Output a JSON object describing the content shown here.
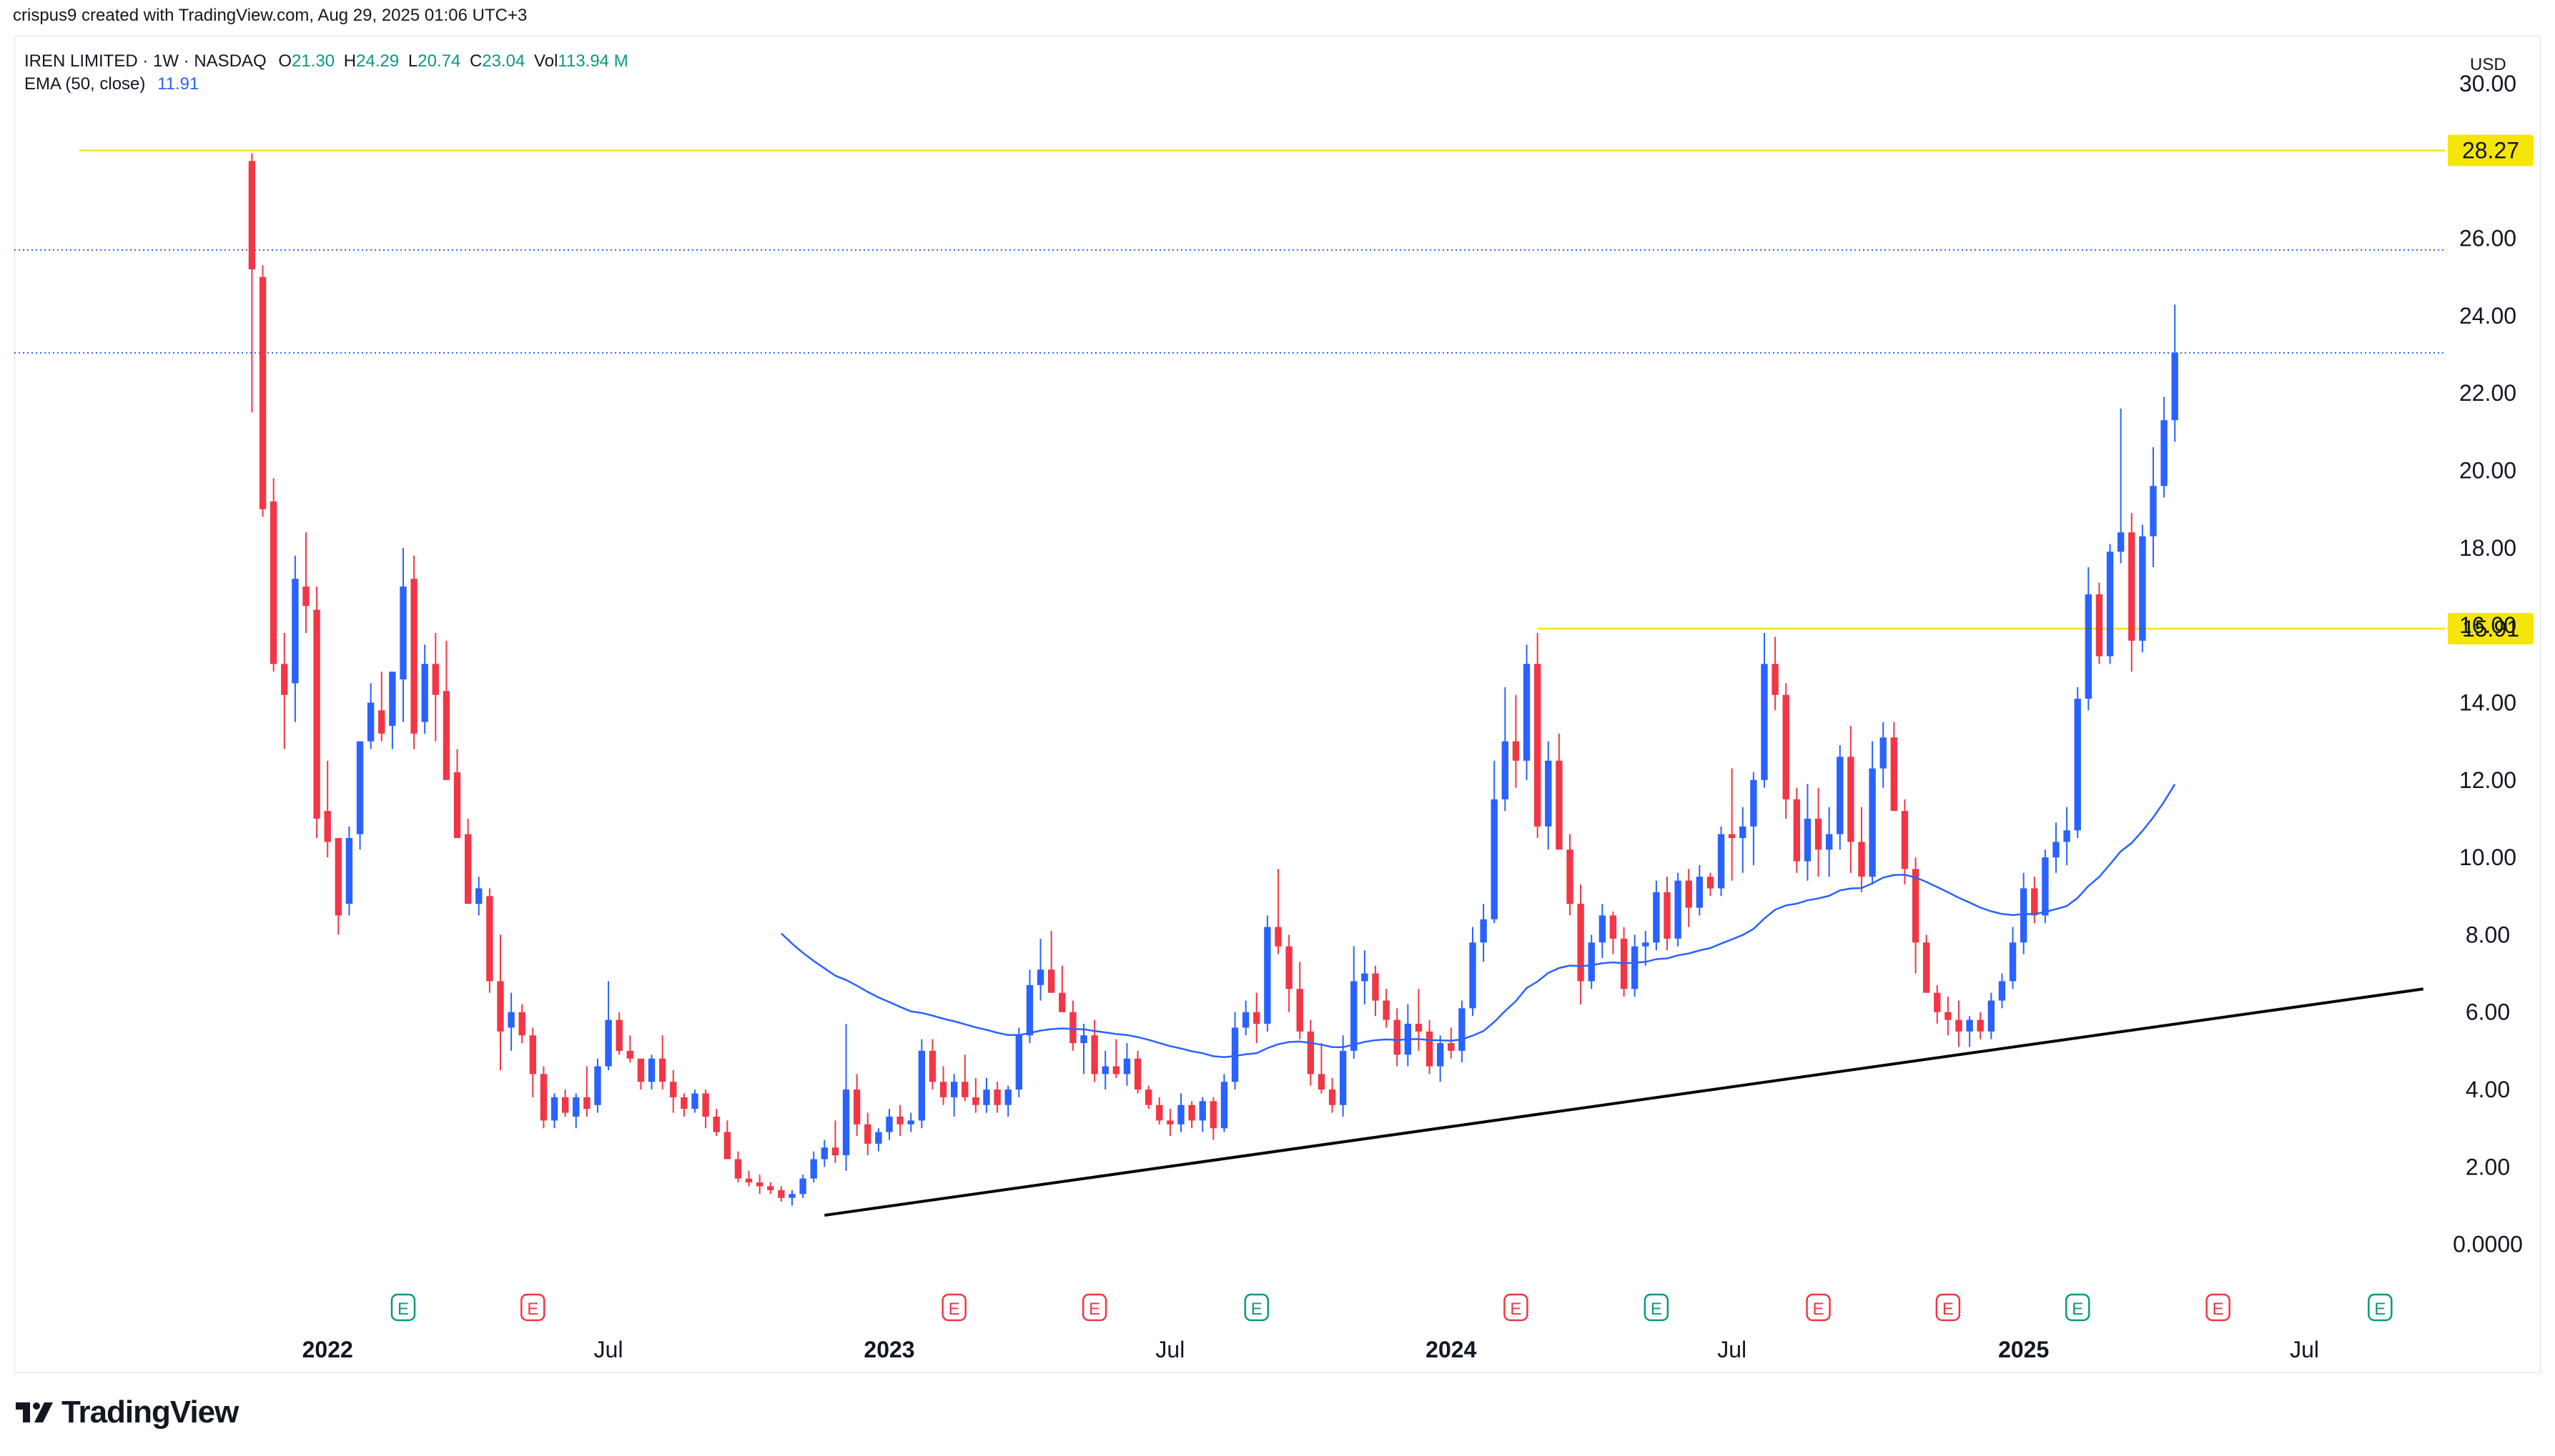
{
  "header": {
    "author_line": "crispus9 created with TradingView.com, Aug 29, 2025 01:06 UTC+3"
  },
  "legend": {
    "symbol": "IREN LIMITED · 1W · NASDAQ",
    "open_label": "O",
    "open": "21.30",
    "high_label": "H",
    "high": "24.29",
    "low_label": "L",
    "low": "20.74",
    "close_label": "C",
    "close": "23.04",
    "vol_label": "Vol",
    "vol": "113.94 M",
    "ema_label": "EMA (50, close)",
    "ema_value": "11.91"
  },
  "footer": {
    "brand": "TradingView",
    "logo": "tradingview-logo-icon"
  },
  "colors": {
    "up": "#2962ff",
    "down": "#f23645",
    "ema": "#2962ff",
    "level": "#f5e60a",
    "trendline": "#000000",
    "dotted": "#2962ff",
    "earnings_green": "#089981",
    "earnings_red": "#f23645"
  },
  "chart_data": {
    "type": "candlestick",
    "currency": "USD",
    "y_ticks": [
      "30.00",
      "26.00",
      "24.00",
      "22.00",
      "20.00",
      "18.00",
      "16.00",
      "14.00",
      "12.00",
      "10.00",
      "8.00",
      "6.00",
      "4.00",
      "2.00",
      "0.0000"
    ],
    "ylim": [
      -0.8,
      31.2
    ],
    "x_labels": [
      {
        "label": "2022",
        "date": "2022-01-03",
        "bold": true
      },
      {
        "label": "Jul",
        "date": "2022-07-04",
        "bold": false
      },
      {
        "label": "2023",
        "date": "2023-01-02",
        "bold": true
      },
      {
        "label": "Jul",
        "date": "2023-07-03",
        "bold": false
      },
      {
        "label": "2024",
        "date": "2024-01-01",
        "bold": true
      },
      {
        "label": "Jul",
        "date": "2024-07-01",
        "bold": false
      },
      {
        "label": "2025",
        "date": "2025-01-06",
        "bold": true
      },
      {
        "label": "Jul",
        "date": "2025-07-07",
        "bold": false
      }
    ],
    "xlim": [
      "2021-06-14",
      "2025-10-06"
    ],
    "first_candle_date": "2021-11-15",
    "candles": [
      [
        28.0,
        28.2,
        21.5,
        25.2
      ],
      [
        25.0,
        25.3,
        18.8,
        19.0
      ],
      [
        19.2,
        19.8,
        14.8,
        15.0
      ],
      [
        15.0,
        15.8,
        12.8,
        14.2
      ],
      [
        14.5,
        17.8,
        13.5,
        17.2
      ],
      [
        17.0,
        18.4,
        15.8,
        16.5
      ],
      [
        16.4,
        17.0,
        10.5,
        11.0
      ],
      [
        11.2,
        12.5,
        10.0,
        10.4
      ],
      [
        10.5,
        10.5,
        8.0,
        8.5
      ],
      [
        8.8,
        10.8,
        8.5,
        10.5
      ],
      [
        10.6,
        13.0,
        10.2,
        13.0
      ],
      [
        13.0,
        14.5,
        12.8,
        14.0
      ],
      [
        13.8,
        14.8,
        13.0,
        13.2
      ],
      [
        13.4,
        14.8,
        12.8,
        14.8
      ],
      [
        14.6,
        18.0,
        13.5,
        17.0
      ],
      [
        17.2,
        17.8,
        12.8,
        13.2
      ],
      [
        13.5,
        15.5,
        13.2,
        15.0
      ],
      [
        15.0,
        15.8,
        13.0,
        14.2
      ],
      [
        14.3,
        15.6,
        12.0,
        12.0
      ],
      [
        12.2,
        12.8,
        10.5,
        10.5
      ],
      [
        10.6,
        11.0,
        8.8,
        8.8
      ],
      [
        8.8,
        9.5,
        8.5,
        9.2
      ],
      [
        9.0,
        9.2,
        6.5,
        6.8
      ],
      [
        6.8,
        8.0,
        4.5,
        5.5
      ],
      [
        5.6,
        6.5,
        5.0,
        6.0
      ],
      [
        6.0,
        6.2,
        5.2,
        5.4
      ],
      [
        5.4,
        5.6,
        3.8,
        4.4
      ],
      [
        4.4,
        4.6,
        3.0,
        3.2
      ],
      [
        3.2,
        3.9,
        3.0,
        3.8
      ],
      [
        3.8,
        4.0,
        3.3,
        3.4
      ],
      [
        3.3,
        3.9,
        3.0,
        3.8
      ],
      [
        3.8,
        4.6,
        3.3,
        3.5
      ],
      [
        3.6,
        4.8,
        3.4,
        4.6
      ],
      [
        4.6,
        6.8,
        4.5,
        5.8
      ],
      [
        5.8,
        6.0,
        4.9,
        5.0
      ],
      [
        5.0,
        5.4,
        4.7,
        4.8
      ],
      [
        4.8,
        4.8,
        4.0,
        4.2
      ],
      [
        4.2,
        4.9,
        4.0,
        4.8
      ],
      [
        4.8,
        5.4,
        4.0,
        4.2
      ],
      [
        4.2,
        4.5,
        3.4,
        3.8
      ],
      [
        3.8,
        3.9,
        3.3,
        3.5
      ],
      [
        3.5,
        4.0,
        3.4,
        3.9
      ],
      [
        3.9,
        4.0,
        3.0,
        3.3
      ],
      [
        3.3,
        3.5,
        2.8,
        2.9
      ],
      [
        2.9,
        3.2,
        2.2,
        2.2
      ],
      [
        2.2,
        2.4,
        1.6,
        1.7
      ],
      [
        1.7,
        1.9,
        1.5,
        1.6
      ],
      [
        1.6,
        1.8,
        1.3,
        1.5
      ],
      [
        1.5,
        1.6,
        1.3,
        1.4
      ],
      [
        1.4,
        1.5,
        1.1,
        1.2
      ],
      [
        1.2,
        1.4,
        1.0,
        1.3
      ],
      [
        1.3,
        1.8,
        1.2,
        1.7
      ],
      [
        1.7,
        2.4,
        1.6,
        2.2
      ],
      [
        2.2,
        2.7,
        2.0,
        2.5
      ],
      [
        2.5,
        3.2,
        2.1,
        2.3
      ],
      [
        2.3,
        5.7,
        1.9,
        4.0
      ],
      [
        4.0,
        4.4,
        2.8,
        3.1
      ],
      [
        3.1,
        3.4,
        2.3,
        2.6
      ],
      [
        2.6,
        3.0,
        2.4,
        2.9
      ],
      [
        2.9,
        3.5,
        2.7,
        3.3
      ],
      [
        3.3,
        3.6,
        2.8,
        3.1
      ],
      [
        3.1,
        3.4,
        2.9,
        3.2
      ],
      [
        3.2,
        5.3,
        3.0,
        5.0
      ],
      [
        5.0,
        5.3,
        4.0,
        4.2
      ],
      [
        4.2,
        4.6,
        3.6,
        3.8
      ],
      [
        3.8,
        4.4,
        3.3,
        4.2
      ],
      [
        4.2,
        4.9,
        3.7,
        3.8
      ],
      [
        3.8,
        4.3,
        3.4,
        3.6
      ],
      [
        3.6,
        4.3,
        3.4,
        4.0
      ],
      [
        4.0,
        4.2,
        3.4,
        3.6
      ],
      [
        3.6,
        4.1,
        3.3,
        4.0
      ],
      [
        4.0,
        5.6,
        3.8,
        5.4
      ],
      [
        5.4,
        7.1,
        5.2,
        6.7
      ],
      [
        6.7,
        7.9,
        6.3,
        7.1
      ],
      [
        7.1,
        8.1,
        6.6,
        6.5
      ],
      [
        6.5,
        7.2,
        6.1,
        6.0
      ],
      [
        6.0,
        6.3,
        5.0,
        5.2
      ],
      [
        5.2,
        5.7,
        4.4,
        5.4
      ],
      [
        5.4,
        5.8,
        4.2,
        4.4
      ],
      [
        4.4,
        5.0,
        4.0,
        4.6
      ],
      [
        4.6,
        5.3,
        4.3,
        4.4
      ],
      [
        4.4,
        5.2,
        4.1,
        4.8
      ],
      [
        4.8,
        5.0,
        3.9,
        4.0
      ],
      [
        4.0,
        4.1,
        3.5,
        3.6
      ],
      [
        3.6,
        3.8,
        3.1,
        3.2
      ],
      [
        3.2,
        3.5,
        2.8,
        3.1
      ],
      [
        3.1,
        3.9,
        2.9,
        3.6
      ],
      [
        3.6,
        3.7,
        3.0,
        3.2
      ],
      [
        3.2,
        3.8,
        2.9,
        3.7
      ],
      [
        3.7,
        3.8,
        2.7,
        3.0
      ],
      [
        3.0,
        4.4,
        2.9,
        4.2
      ],
      [
        4.2,
        6.0,
        4.0,
        5.6
      ],
      [
        5.6,
        6.3,
        5.4,
        6.0
      ],
      [
        6.0,
        6.5,
        5.2,
        5.7
      ],
      [
        5.7,
        8.5,
        5.5,
        8.2
      ],
      [
        8.2,
        9.7,
        7.5,
        7.7
      ],
      [
        7.7,
        8.0,
        6.0,
        6.6
      ],
      [
        6.6,
        7.3,
        5.3,
        5.5
      ],
      [
        5.5,
        5.8,
        4.1,
        4.4
      ],
      [
        4.4,
        5.2,
        3.9,
        4.0
      ],
      [
        4.0,
        4.3,
        3.4,
        3.6
      ],
      [
        3.6,
        5.4,
        3.3,
        5.0
      ],
      [
        5.0,
        7.7,
        4.8,
        6.8
      ],
      [
        6.8,
        7.6,
        6.2,
        7.0
      ],
      [
        7.0,
        7.2,
        5.9,
        6.3
      ],
      [
        6.3,
        6.6,
        5.6,
        5.8
      ],
      [
        5.8,
        6.1,
        4.6,
        4.9
      ],
      [
        4.9,
        6.2,
        4.6,
        5.7
      ],
      [
        5.7,
        6.6,
        5.0,
        5.5
      ],
      [
        5.5,
        5.8,
        4.4,
        4.6
      ],
      [
        4.6,
        5.4,
        4.2,
        5.2
      ],
      [
        5.2,
        5.6,
        4.8,
        5.0
      ],
      [
        5.0,
        6.3,
        4.7,
        6.1
      ],
      [
        6.1,
        8.2,
        5.9,
        7.8
      ],
      [
        7.8,
        8.8,
        7.3,
        8.4
      ],
      [
        8.4,
        12.5,
        8.3,
        11.5
      ],
      [
        11.5,
        14.4,
        11.2,
        13.0
      ],
      [
        13.0,
        14.2,
        11.8,
        12.5
      ],
      [
        12.5,
        15.5,
        12.0,
        15.0
      ],
      [
        15.0,
        15.8,
        10.5,
        10.8
      ],
      [
        10.8,
        13.0,
        10.2,
        12.5
      ],
      [
        12.5,
        13.2,
        10.4,
        10.2
      ],
      [
        10.2,
        10.6,
        8.5,
        8.8
      ],
      [
        8.8,
        9.3,
        6.2,
        6.8
      ],
      [
        6.8,
        8.0,
        6.6,
        7.8
      ],
      [
        7.8,
        8.8,
        7.4,
        8.5
      ],
      [
        8.5,
        8.6,
        7.5,
        7.9
      ],
      [
        7.9,
        8.2,
        6.4,
        6.6
      ],
      [
        6.6,
        8.0,
        6.4,
        7.7
      ],
      [
        7.7,
        8.1,
        7.2,
        7.8
      ],
      [
        7.8,
        9.4,
        7.6,
        9.1
      ],
      [
        9.1,
        9.5,
        7.6,
        7.9
      ],
      [
        7.9,
        9.6,
        7.7,
        9.4
      ],
      [
        9.4,
        9.7,
        8.2,
        8.7
      ],
      [
        8.7,
        9.8,
        8.5,
        9.5
      ],
      [
        9.5,
        9.6,
        9.0,
        9.2
      ],
      [
        9.2,
        10.8,
        9.0,
        10.6
      ],
      [
        10.6,
        12.3,
        9.4,
        10.5
      ],
      [
        10.5,
        11.3,
        9.6,
        10.8
      ],
      [
        10.8,
        12.2,
        9.8,
        12.0
      ],
      [
        12.0,
        15.8,
        11.8,
        15.0
      ],
      [
        15.0,
        15.7,
        13.8,
        14.2
      ],
      [
        14.2,
        14.5,
        11.0,
        11.5
      ],
      [
        11.5,
        11.8,
        9.6,
        9.9
      ],
      [
        9.9,
        11.9,
        9.4,
        11.0
      ],
      [
        11.0,
        11.8,
        9.5,
        10.2
      ],
      [
        10.2,
        11.3,
        9.5,
        10.6
      ],
      [
        10.6,
        12.9,
        10.2,
        12.6
      ],
      [
        12.6,
        13.4,
        9.6,
        10.4
      ],
      [
        10.4,
        11.3,
        9.1,
        9.5
      ],
      [
        9.5,
        13.0,
        9.3,
        12.3
      ],
      [
        12.3,
        13.5,
        11.8,
        13.1
      ],
      [
        13.1,
        13.5,
        11.5,
        11.2
      ],
      [
        11.2,
        11.5,
        9.3,
        9.7
      ],
      [
        9.7,
        10.0,
        7.0,
        7.8
      ],
      [
        7.8,
        8.0,
        6.6,
        6.5
      ],
      [
        6.5,
        6.7,
        5.7,
        6.0
      ],
      [
        6.0,
        6.4,
        5.4,
        5.8
      ],
      [
        5.8,
        6.3,
        5.1,
        5.5
      ],
      [
        5.5,
        5.9,
        5.1,
        5.8
      ],
      [
        5.8,
        6.0,
        5.3,
        5.5
      ],
      [
        5.5,
        6.5,
        5.3,
        6.3
      ],
      [
        6.3,
        7.0,
        6.1,
        6.8
      ],
      [
        6.8,
        8.2,
        6.6,
        7.8
      ],
      [
        7.8,
        9.6,
        7.5,
        9.2
      ],
      [
        9.2,
        9.5,
        8.3,
        8.5
      ],
      [
        8.5,
        10.2,
        8.3,
        10.0
      ],
      [
        10.0,
        10.9,
        9.6,
        10.4
      ],
      [
        10.4,
        11.3,
        9.8,
        10.7
      ],
      [
        10.7,
        14.4,
        10.5,
        14.1
      ],
      [
        14.1,
        17.5,
        13.8,
        16.8
      ],
      [
        16.8,
        17.1,
        15.0,
        15.2
      ],
      [
        15.2,
        18.1,
        15.0,
        17.9
      ],
      [
        17.9,
        21.6,
        17.6,
        18.4
      ],
      [
        18.4,
        18.9,
        14.8,
        15.6
      ],
      [
        15.6,
        18.6,
        15.3,
        18.3
      ],
      [
        18.3,
        20.6,
        17.5,
        19.6
      ],
      [
        19.6,
        21.9,
        19.3,
        21.3
      ],
      [
        21.3,
        24.29,
        20.74,
        23.04
      ]
    ],
    "ema_series_name": "EMA (50, close)",
    "ema_start_index": 49,
    "ema_end_value": 11.91,
    "levels": [
      {
        "price": 28.27,
        "label": "28.27",
        "from_date": "2021-07-26",
        "style": "solid",
        "color": "#f5e60a"
      },
      {
        "price": 15.91,
        "label": "15.91",
        "from_date": "2024-02-26",
        "style": "solid",
        "color": "#f5e60a"
      },
      {
        "price": 25.7,
        "label": "",
        "from_date": "2021-06-14",
        "style": "dotted",
        "color": "#2962ff"
      },
      {
        "price": 23.04,
        "label": "",
        "from_date": "2021-06-14",
        "style": "dotted",
        "color": "#2962ff"
      }
    ],
    "trendline": {
      "from": [
        "2022-11-21",
        0.75
      ],
      "to": [
        "2025-09-22",
        6.6
      ]
    },
    "earnings": [
      {
        "date": "2022-02-21",
        "color": "green",
        "label": "E"
      },
      {
        "date": "2022-05-16",
        "color": "red",
        "label": "E"
      },
      {
        "date": "2023-02-13",
        "color": "red",
        "label": "E"
      },
      {
        "date": "2023-05-15",
        "color": "red",
        "label": "E"
      },
      {
        "date": "2023-08-28",
        "color": "green",
        "label": "E"
      },
      {
        "date": "2024-02-12",
        "color": "red",
        "label": "E"
      },
      {
        "date": "2024-05-13",
        "color": "green",
        "label": "E"
      },
      {
        "date": "2024-08-26",
        "color": "red",
        "label": "E"
      },
      {
        "date": "2024-11-18",
        "color": "red",
        "label": "E"
      },
      {
        "date": "2025-02-10",
        "color": "green",
        "label": "E"
      },
      {
        "date": "2025-05-12",
        "color": "red",
        "label": "E"
      },
      {
        "date": "2025-08-25",
        "color": "green",
        "label": "E"
      }
    ]
  }
}
